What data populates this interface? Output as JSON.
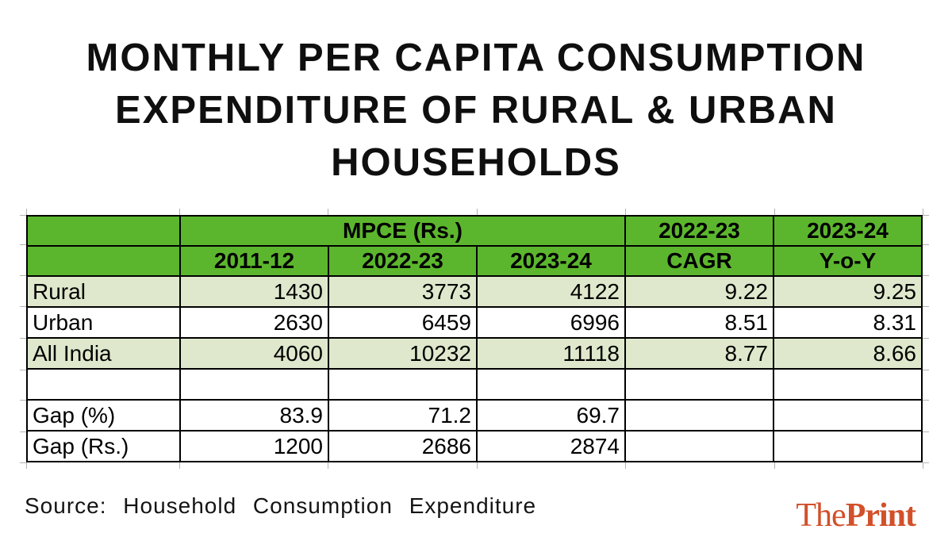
{
  "title": {
    "lines": [
      "MONTHLY PER CAPITA CONSUMPTION",
      "EXPENDITURE OF RURAL & URBAN",
      "HOUSEHOLDS"
    ]
  },
  "table": {
    "header_row1": {
      "mpce": "MPCE (Rs.)",
      "cagr_year": "2022-23",
      "yoy_year": "2023-24"
    },
    "header_row2": {
      "year1": "2011-12",
      "year2": "2022-23",
      "year3": "2023-24",
      "cagr": "CAGR",
      "yoy": "Y-o-Y"
    },
    "rows": [
      {
        "label": "Rural",
        "values": [
          "1430",
          "3773",
          "4122",
          "9.22",
          "9.25"
        ],
        "shaded": true
      },
      {
        "label": "Urban",
        "values": [
          "2630",
          "6459",
          "6996",
          "8.51",
          "8.31"
        ],
        "shaded": false
      },
      {
        "label": "All India",
        "values": [
          "4060",
          "10232",
          "11118",
          "8.77",
          "8.66"
        ],
        "shaded": true
      },
      {
        "label": "",
        "values": [
          "",
          "",
          "",
          "",
          ""
        ],
        "shaded": false
      },
      {
        "label": "Gap (%)",
        "values": [
          "83.9",
          "71.2",
          "69.7",
          "",
          ""
        ],
        "shaded": false
      },
      {
        "label": "Gap (Rs.)",
        "values": [
          "1200",
          "2686",
          "2874",
          "",
          ""
        ],
        "shaded": false
      }
    ]
  },
  "footer": {
    "source": "Source: Household Consumption Expenditure",
    "logo_the": "The",
    "logo_print": "Print"
  },
  "colors": {
    "header_green": "#5cb62d",
    "row_green": "#dfe8cc",
    "logo_orange": "#d2502a",
    "border_black": "#000000"
  },
  "chart_data": {
    "type": "table",
    "title": "MONTHLY PER CAPITA CONSUMPTION EXPENDITURE OF RURAL & URBAN HOUSEHOLDS",
    "column_groups": [
      "MPCE (Rs.)",
      "2022-23 CAGR",
      "2023-24 Y-o-Y"
    ],
    "columns": [
      "",
      "MPCE (Rs.) 2011-12",
      "MPCE (Rs.) 2022-23",
      "MPCE (Rs.) 2023-24",
      "2022-23 CAGR",
      "2023-24 Y-o-Y"
    ],
    "rows": [
      [
        "Rural",
        1430,
        3773,
        4122,
        9.22,
        9.25
      ],
      [
        "Urban",
        2630,
        6459,
        6996,
        8.51,
        8.31
      ],
      [
        "All India",
        4060,
        10232,
        11118,
        8.77,
        8.66
      ],
      [
        "Gap (%)",
        83.9,
        71.2,
        69.7,
        null,
        null
      ],
      [
        "Gap (Rs.)",
        1200,
        2686,
        2874,
        null,
        null
      ]
    ],
    "source": "Household Consumption Expenditure"
  }
}
